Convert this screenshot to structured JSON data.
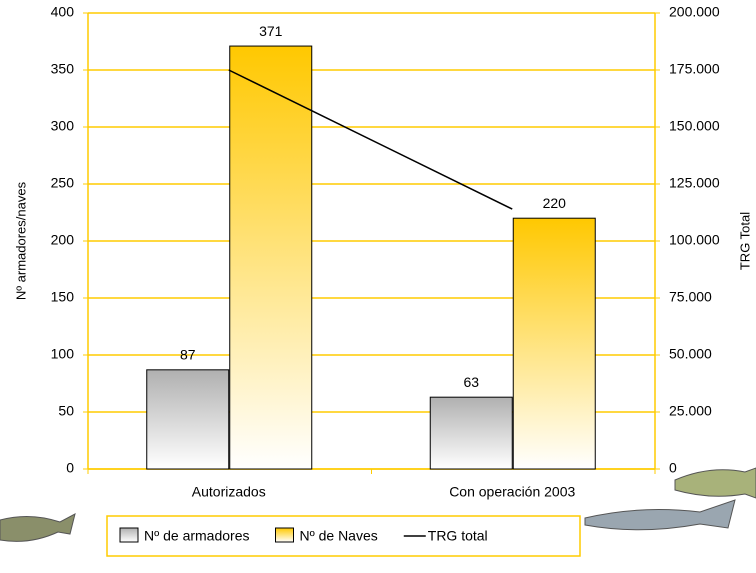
{
  "chart_data": {
    "type": "bar",
    "categories": [
      "Autorizados",
      "Con operación 2003"
    ],
    "series": [
      {
        "name": "Nº de armadores",
        "color": "#b0b0b0",
        "values": [
          87,
          63
        ]
      },
      {
        "name": "Nº de Naves",
        "color": "#ffc800",
        "values": [
          371,
          220
        ]
      },
      {
        "name": "TRG total",
        "color": "#000000",
        "type": "line",
        "axis": "y2",
        "values": [
          175000,
          114000
        ]
      }
    ],
    "ylabel": "Nº armadores/naves",
    "y2label": "TRG Total",
    "ylim": [
      0,
      400
    ],
    "yticks": [
      0,
      50,
      100,
      150,
      200,
      250,
      300,
      350,
      400
    ],
    "y2lim": [
      0,
      200000
    ],
    "y2ticks": [
      {
        "value": 0,
        "label": "0"
      },
      {
        "value": 25000,
        "label": "25.000"
      },
      {
        "value": 50000,
        "label": "50.000"
      },
      {
        "value": 75000,
        "label": "75.000"
      },
      {
        "value": 100000,
        "label": "100.000"
      },
      {
        "value": 125000,
        "label": "125.000"
      },
      {
        "value": 150000,
        "label": "150.000"
      },
      {
        "value": 175000,
        "label": "175.000"
      },
      {
        "value": 200000,
        "label": "200.000"
      }
    ],
    "grid": true,
    "grid_color": "#ffcc00",
    "legend": "bottom"
  }
}
